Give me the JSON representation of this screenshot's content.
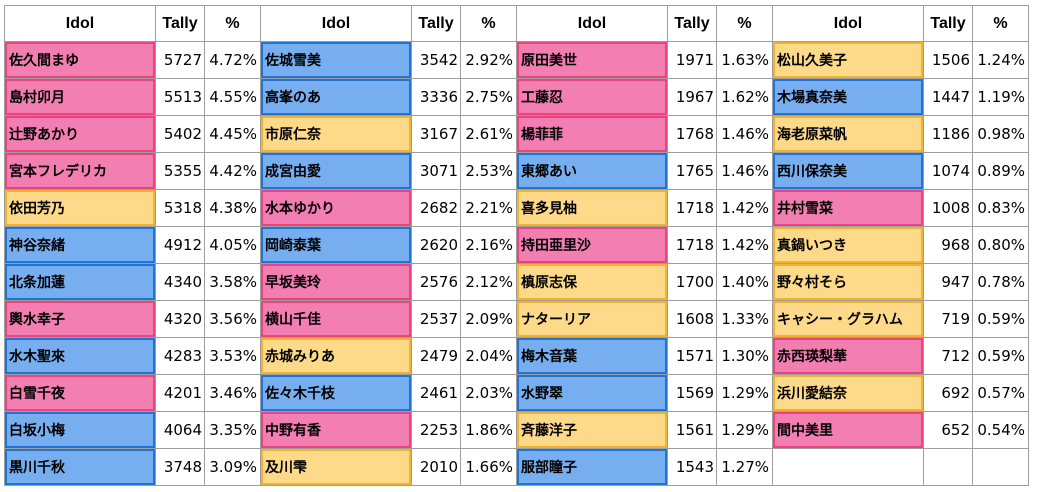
{
  "headers": {
    "idol": "Idol",
    "tally": "Tally",
    "pct": "%"
  },
  "colors": {
    "pink": "#f27eb2",
    "blue": "#77aef0",
    "yellow": "#fdd98a"
  },
  "columns": [
    [
      {
        "name": "佐久間まゆ",
        "tally": "5727",
        "pct": "4.72%",
        "color": "pink"
      },
      {
        "name": "島村卯月",
        "tally": "5513",
        "pct": "4.55%",
        "color": "pink"
      },
      {
        "name": "辻野あかり",
        "tally": "5402",
        "pct": "4.45%",
        "color": "pink"
      },
      {
        "name": "宮本フレデリカ",
        "tally": "5355",
        "pct": "4.42%",
        "color": "pink"
      },
      {
        "name": "依田芳乃",
        "tally": "5318",
        "pct": "4.38%",
        "color": "yellow"
      },
      {
        "name": "神谷奈緒",
        "tally": "4912",
        "pct": "4.05%",
        "color": "blue"
      },
      {
        "name": "北条加蓮",
        "tally": "4340",
        "pct": "3.58%",
        "color": "blue"
      },
      {
        "name": "輿水幸子",
        "tally": "4320",
        "pct": "3.56%",
        "color": "pink"
      },
      {
        "name": "水木聖來",
        "tally": "4283",
        "pct": "3.53%",
        "color": "blue"
      },
      {
        "name": "白雪千夜",
        "tally": "4201",
        "pct": "3.46%",
        "color": "pink"
      },
      {
        "name": "白坂小梅",
        "tally": "4064",
        "pct": "3.35%",
        "color": "blue"
      },
      {
        "name": "黒川千秋",
        "tally": "3748",
        "pct": "3.09%",
        "color": "blue"
      }
    ],
    [
      {
        "name": "佐城雪美",
        "tally": "3542",
        "pct": "2.92%",
        "color": "blue"
      },
      {
        "name": "高峯のあ",
        "tally": "3336",
        "pct": "2.75%",
        "color": "blue"
      },
      {
        "name": "市原仁奈",
        "tally": "3167",
        "pct": "2.61%",
        "color": "yellow"
      },
      {
        "name": "成宮由愛",
        "tally": "3071",
        "pct": "2.53%",
        "color": "blue"
      },
      {
        "name": "水本ゆかり",
        "tally": "2682",
        "pct": "2.21%",
        "color": "pink"
      },
      {
        "name": "岡崎泰葉",
        "tally": "2620",
        "pct": "2.16%",
        "color": "blue"
      },
      {
        "name": "早坂美玲",
        "tally": "2576",
        "pct": "2.12%",
        "color": "pink"
      },
      {
        "name": "横山千佳",
        "tally": "2537",
        "pct": "2.09%",
        "color": "pink"
      },
      {
        "name": "赤城みりあ",
        "tally": "2479",
        "pct": "2.04%",
        "color": "yellow"
      },
      {
        "name": "佐々木千枝",
        "tally": "2461",
        "pct": "2.03%",
        "color": "blue"
      },
      {
        "name": "中野有香",
        "tally": "2253",
        "pct": "1.86%",
        "color": "pink"
      },
      {
        "name": "及川雫",
        "tally": "2010",
        "pct": "1.66%",
        "color": "yellow"
      }
    ],
    [
      {
        "name": "原田美世",
        "tally": "1971",
        "pct": "1.63%",
        "color": "pink"
      },
      {
        "name": "工藤忍",
        "tally": "1967",
        "pct": "1.62%",
        "color": "pink"
      },
      {
        "name": "楊菲菲",
        "tally": "1768",
        "pct": "1.46%",
        "color": "pink"
      },
      {
        "name": "東郷あい",
        "tally": "1765",
        "pct": "1.46%",
        "color": "blue"
      },
      {
        "name": "喜多見柚",
        "tally": "1718",
        "pct": "1.42%",
        "color": "yellow"
      },
      {
        "name": "持田亜里沙",
        "tally": "1718",
        "pct": "1.42%",
        "color": "pink"
      },
      {
        "name": "槙原志保",
        "tally": "1700",
        "pct": "1.40%",
        "color": "yellow"
      },
      {
        "name": "ナターリア",
        "tally": "1608",
        "pct": "1.33%",
        "color": "yellow"
      },
      {
        "name": "梅木音葉",
        "tally": "1571",
        "pct": "1.30%",
        "color": "blue"
      },
      {
        "name": "水野翠",
        "tally": "1569",
        "pct": "1.29%",
        "color": "blue"
      },
      {
        "name": "斉藤洋子",
        "tally": "1561",
        "pct": "1.29%",
        "color": "yellow"
      },
      {
        "name": "服部瞳子",
        "tally": "1543",
        "pct": "1.27%",
        "color": "blue"
      }
    ],
    [
      {
        "name": "松山久美子",
        "tally": "1506",
        "pct": "1.24%",
        "color": "yellow"
      },
      {
        "name": "木場真奈美",
        "tally": "1447",
        "pct": "1.19%",
        "color": "blue"
      },
      {
        "name": "海老原菜帆",
        "tally": "1186",
        "pct": "0.98%",
        "color": "yellow"
      },
      {
        "name": "西川保奈美",
        "tally": "1074",
        "pct": "0.89%",
        "color": "blue"
      },
      {
        "name": "井村雪菜",
        "tally": "1008",
        "pct": "0.83%",
        "color": "pink"
      },
      {
        "name": "真鍋いつき",
        "tally": "968",
        "pct": "0.80%",
        "color": "yellow"
      },
      {
        "name": "野々村そら",
        "tally": "947",
        "pct": "0.78%",
        "color": "yellow"
      },
      {
        "name": "キャシー・グラハム",
        "tally": "719",
        "pct": "0.59%",
        "color": "yellow"
      },
      {
        "name": "赤西瑛梨華",
        "tally": "712",
        "pct": "0.59%",
        "color": "pink"
      },
      {
        "name": "浜川愛結奈",
        "tally": "692",
        "pct": "0.57%",
        "color": "yellow"
      },
      {
        "name": "間中美里",
        "tally": "652",
        "pct": "0.54%",
        "color": "pink"
      }
    ]
  ]
}
